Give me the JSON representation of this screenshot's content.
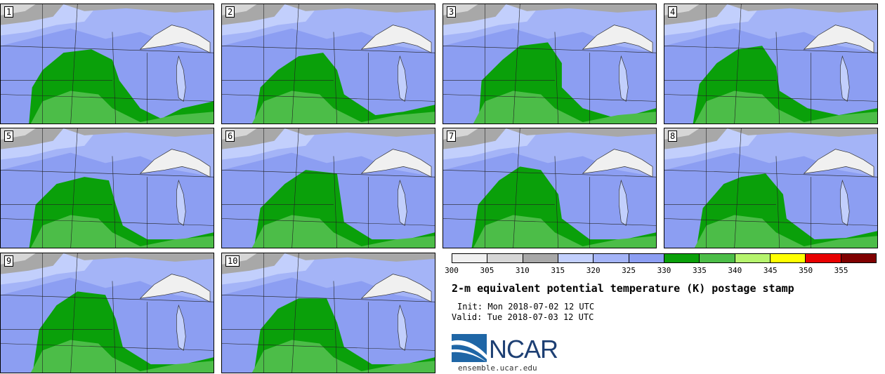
{
  "panels": [
    {
      "label": "1",
      "style": 0
    },
    {
      "label": "2",
      "style": 1
    },
    {
      "label": "3",
      "style": 2
    },
    {
      "label": "4",
      "style": 3
    },
    {
      "label": "5",
      "style": 4
    },
    {
      "label": "6",
      "style": 5
    },
    {
      "label": "7",
      "style": 6
    },
    {
      "label": "8",
      "style": 7
    },
    {
      "label": "9",
      "style": 8
    },
    {
      "label": "10",
      "style": 9
    }
  ],
  "colorbar": {
    "colors": [
      "#f0f0f0",
      "#d6d6d6",
      "#a8a8a8",
      "#c2cffc",
      "#a4b4f7",
      "#8c9ef2",
      "#0aa00a",
      "#4cbd48",
      "#b6f46e",
      "#ffff00",
      "#e80000",
      "#800000"
    ],
    "ticks": [
      "300",
      "305",
      "310",
      "315",
      "320",
      "325",
      "330",
      "335",
      "340",
      "345",
      "350",
      "355"
    ]
  },
  "title": "2-m equivalent potential temperature (K) postage stamp",
  "init": "Init: Mon 2018-07-02 12 UTC",
  "valid": "Valid: Tue 2018-07-03 12 UTC",
  "logo": {
    "text": "NCAR",
    "site": "ensemble.ucar.edu"
  }
}
